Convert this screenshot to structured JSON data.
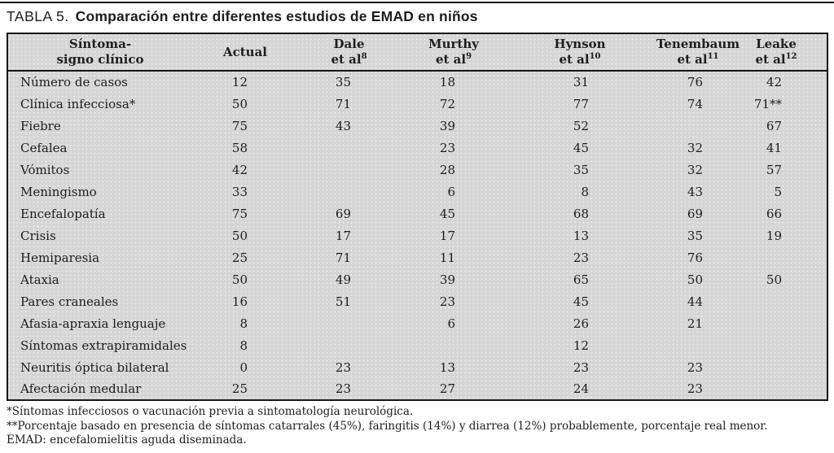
{
  "page": {
    "title_label": "TABLA 5.",
    "title_text": "Comparación entre diferentes estudios de EMAD en niños"
  },
  "table": {
    "columns": [
      {
        "line1": "Síntoma-",
        "line2": "signo clínico",
        "sup": ""
      },
      {
        "line1": "Actual",
        "line2": "",
        "sup": ""
      },
      {
        "line1": "Dale",
        "line2": "et al",
        "sup": "8"
      },
      {
        "line1": "Murthy",
        "line2": "et al",
        "sup": "9"
      },
      {
        "line1": "Hynson",
        "line2": "et al",
        "sup": "10"
      },
      {
        "line1": "Tenembaum",
        "line2": "et al",
        "sup": "11"
      },
      {
        "line1": "Leake",
        "line2": "et al",
        "sup": "12"
      }
    ],
    "rows": [
      {
        "label": "Número de casos",
        "values": [
          "12",
          "35",
          "18",
          "31",
          "76",
          "42"
        ]
      },
      {
        "label": "Clínica infecciosa*",
        "values": [
          "50",
          "71",
          "72",
          "77",
          "74",
          "71**"
        ]
      },
      {
        "label": "Fiebre",
        "values": [
          "75",
          "43",
          "39",
          "52",
          "",
          "67"
        ]
      },
      {
        "label": "Cefalea",
        "values": [
          "58",
          "",
          "23",
          "45",
          "32",
          "41"
        ]
      },
      {
        "label": "Vómitos",
        "values": [
          "42",
          "",
          "28",
          "35",
          "32",
          "57"
        ]
      },
      {
        "label": "Meningismo",
        "values": [
          "33",
          "",
          "6",
          "8",
          "43",
          "5"
        ]
      },
      {
        "label": "Encefalopatía",
        "values": [
          "75",
          "69",
          "45",
          "68",
          "69",
          "66"
        ]
      },
      {
        "label": "Crisis",
        "values": [
          "50",
          "17",
          "17",
          "13",
          "35",
          "19"
        ]
      },
      {
        "label": "Hemiparesia",
        "values": [
          "25",
          "71",
          "11",
          "23",
          "76",
          ""
        ]
      },
      {
        "label": "Ataxia",
        "values": [
          "50",
          "49",
          "39",
          "65",
          "50",
          "50"
        ]
      },
      {
        "label": "Pares craneales",
        "values": [
          "16",
          "51",
          "23",
          "45",
          "44",
          ""
        ]
      },
      {
        "label": "Afasia-apraxia lenguaje",
        "values": [
          "8",
          "",
          "6",
          "26",
          "21",
          ""
        ]
      },
      {
        "label": "Síntomas extrapiramidales",
        "values": [
          "8",
          "",
          "",
          "12",
          "",
          ""
        ]
      },
      {
        "label": "Neuritis óptica bilateral",
        "values": [
          "0",
          "23",
          "13",
          "23",
          "23",
          ""
        ]
      },
      {
        "label": "Afectación medular",
        "values": [
          "25",
          "23",
          "27",
          "24",
          "23",
          ""
        ]
      }
    ]
  },
  "footnotes": [
    "*Síntomas infecciosos o vacunación previa a sintomatología neurológica.",
    "**Porcentaje basado en presencia de síntomas catarrales (45%), faringitis (14%) y diarrea (12%) probablemente, porcentaje real menor.",
    "EMAD: encefalomielitis aguda diseminada."
  ],
  "colors": {
    "panel_bg": "#d5d5d5",
    "border": "#161616",
    "text": "#1e1e1e"
  }
}
